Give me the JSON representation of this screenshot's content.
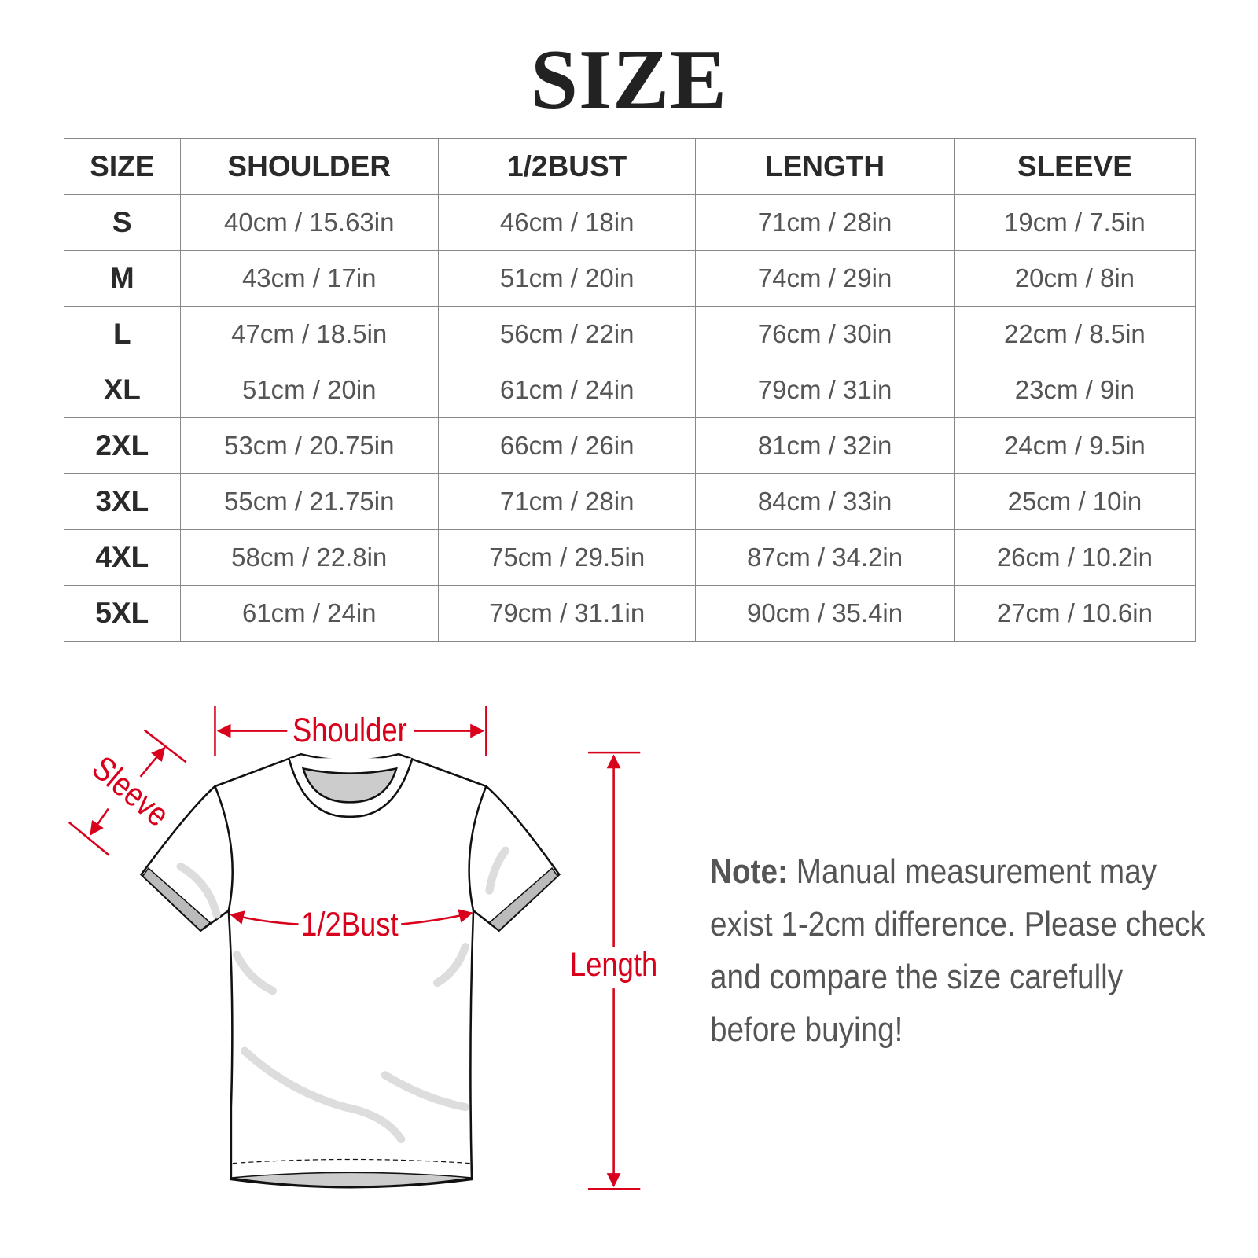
{
  "title": "SIZE",
  "table": {
    "headers": [
      "SIZE",
      "SHOULDER",
      "1/2BUST",
      "LENGTH",
      "SLEEVE"
    ],
    "rows": [
      [
        "S",
        "40cm / 15.63in",
        "46cm / 18in",
        "71cm / 28in",
        "19cm / 7.5in"
      ],
      [
        "M",
        "43cm / 17in",
        "51cm / 20in",
        "74cm / 29in",
        "20cm / 8in"
      ],
      [
        "L",
        "47cm / 18.5in",
        "56cm / 22in",
        "76cm / 30in",
        "22cm / 8.5in"
      ],
      [
        "XL",
        "51cm / 20in",
        "61cm / 24in",
        "79cm / 31in",
        "23cm / 9in"
      ],
      [
        "2XL",
        "53cm / 20.75in",
        "66cm / 26in",
        "81cm / 32in",
        "24cm / 9.5in"
      ],
      [
        "3XL",
        "55cm / 21.75in",
        "71cm / 28in",
        "84cm / 33in",
        "25cm / 10in"
      ],
      [
        "4XL",
        "58cm / 22.8in",
        "75cm / 29.5in",
        "87cm / 34.2in",
        "26cm / 10.2in"
      ],
      [
        "5XL",
        "61cm / 24in",
        "79cm / 31.1in",
        "90cm / 35.4in",
        "27cm / 10.6in"
      ]
    ]
  },
  "diagram": {
    "labels": {
      "shoulder": "Shoulder",
      "sleeve": "Sleeve",
      "bust": "1/2Bust",
      "length": "Length"
    },
    "accent_color": "#d9001b"
  },
  "note": {
    "label": "Note:",
    "text": " Manual measurement may exist 1-2cm difference. Please check and compare the size carefully before buying!"
  }
}
